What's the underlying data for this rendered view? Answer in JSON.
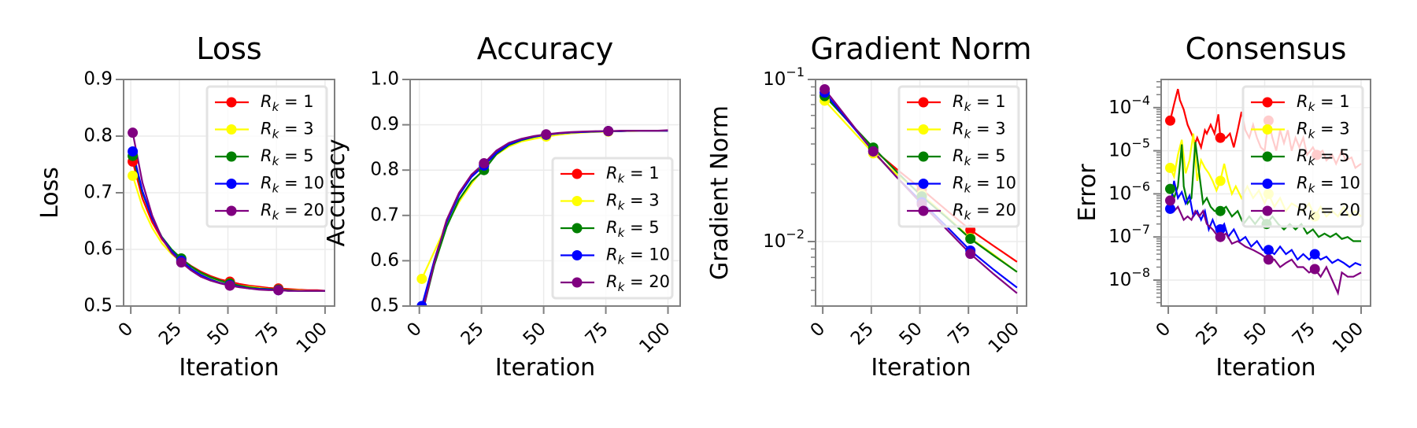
{
  "series_names": [
    "R_k = 1",
    "R_k = 3",
    "R_k = 5",
    "R_k = 10",
    "R_k = 20"
  ],
  "legend_values": [
    "1",
    "3",
    "5",
    "10",
    "20"
  ],
  "colors": [
    "#ff0000",
    "#ffff00",
    "#008000",
    "#0000ff",
    "#800080"
  ],
  "chart_data": [
    {
      "type": "line",
      "title": "Loss",
      "xlabel": "Iteration",
      "ylabel": "Loss",
      "xlim": [
        -3.7,
        104.9
      ],
      "ylim": [
        0.5,
        0.9
      ],
      "yscale": "linear",
      "xticks": [
        "0",
        "25",
        "50",
        "75",
        "100"
      ],
      "yticks": [
        "0.5",
        "0.6",
        "0.7",
        "0.8",
        "0.9"
      ],
      "grid": true,
      "legend": "top-right",
      "series": [
        {
          "x": [
            1,
            6,
            11,
            16,
            21,
            26,
            31,
            36,
            41,
            46,
            51,
            56,
            61,
            66,
            71,
            76,
            81,
            86,
            91,
            96,
            100
          ],
          "y": [
            0.755,
            0.69,
            0.648,
            0.618,
            0.597,
            0.583,
            0.571,
            0.561,
            0.553,
            0.547,
            0.543,
            0.539,
            0.536,
            0.534,
            0.532,
            0.531,
            0.53,
            0.529,
            0.528,
            0.528,
            0.527
          ]
        },
        {
          "x": [
            1,
            6,
            11,
            16,
            21,
            26,
            31,
            36,
            41,
            46,
            51,
            56,
            61,
            66,
            71,
            76,
            81,
            86,
            91,
            96,
            100
          ],
          "y": [
            0.73,
            0.675,
            0.638,
            0.611,
            0.592,
            0.578,
            0.566,
            0.557,
            0.549,
            0.544,
            0.54,
            0.536,
            0.534,
            0.532,
            0.53,
            0.529,
            0.528,
            0.528,
            0.527,
            0.527,
            0.527
          ]
        },
        {
          "x": [
            1,
            6,
            11,
            16,
            21,
            26,
            31,
            36,
            41,
            46,
            51,
            56,
            61,
            66,
            71,
            76,
            81,
            86,
            91,
            96,
            100
          ],
          "y": [
            0.765,
            0.7,
            0.655,
            0.622,
            0.6,
            0.584,
            0.57,
            0.559,
            0.551,
            0.545,
            0.54,
            0.536,
            0.533,
            0.531,
            0.53,
            0.529,
            0.528,
            0.527,
            0.527,
            0.527,
            0.527
          ]
        },
        {
          "x": [
            1,
            6,
            11,
            16,
            21,
            26,
            31,
            36,
            41,
            46,
            51,
            56,
            61,
            66,
            71,
            76,
            81,
            86,
            91,
            96,
            100
          ],
          "y": [
            0.773,
            0.703,
            0.655,
            0.621,
            0.597,
            0.58,
            0.566,
            0.555,
            0.547,
            0.541,
            0.537,
            0.534,
            0.531,
            0.53,
            0.529,
            0.528,
            0.527,
            0.527,
            0.527,
            0.527,
            0.527
          ]
        },
        {
          "x": [
            1,
            6,
            11,
            16,
            21,
            26,
            31,
            36,
            41,
            46,
            51,
            56,
            61,
            66,
            71,
            76,
            81,
            86,
            91,
            96,
            100
          ],
          "y": [
            0.806,
            0.718,
            0.66,
            0.62,
            0.594,
            0.577,
            0.563,
            0.552,
            0.545,
            0.54,
            0.536,
            0.533,
            0.531,
            0.529,
            0.528,
            0.528,
            0.527,
            0.527,
            0.527,
            0.527,
            0.527
          ]
        }
      ]
    },
    {
      "type": "line",
      "title": "Accuracy",
      "xlabel": "Iteration",
      "ylabel": "Accuracy",
      "xlim": [
        -3.7,
        104.9
      ],
      "ylim": [
        0.5,
        1.0
      ],
      "yscale": "linear",
      "xticks": [
        "0",
        "25",
        "50",
        "75",
        "100"
      ],
      "yticks": [
        "0.5",
        "0.6",
        "0.7",
        "0.8",
        "0.9",
        "1.0"
      ],
      "grid": true,
      "legend": "bottom-right",
      "series": [
        {
          "x": [
            1,
            6,
            11,
            16,
            21,
            26,
            31,
            36,
            41,
            46,
            51,
            56,
            61,
            66,
            71,
            76,
            81,
            86,
            91,
            96,
            100
          ],
          "y": [
            0.49,
            0.6,
            0.69,
            0.75,
            0.79,
            0.812,
            0.84,
            0.858,
            0.868,
            0.874,
            0.878,
            0.881,
            0.883,
            0.884,
            0.885,
            0.886,
            0.886,
            0.887,
            0.887,
            0.887,
            0.887
          ]
        },
        {
          "x": [
            1,
            6,
            11,
            16,
            21,
            26,
            31,
            36,
            41,
            46,
            51,
            56,
            61,
            66,
            71,
            76,
            81,
            86,
            91,
            96,
            100
          ],
          "y": [
            0.56,
            0.62,
            0.68,
            0.73,
            0.77,
            0.805,
            0.834,
            0.852,
            0.863,
            0.869,
            0.874,
            0.878,
            0.881,
            0.883,
            0.884,
            0.885,
            0.886,
            0.886,
            0.887,
            0.887,
            0.887
          ]
        },
        {
          "x": [
            1,
            6,
            11,
            16,
            21,
            26,
            31,
            36,
            41,
            46,
            51,
            56,
            61,
            66,
            71,
            76,
            81,
            86,
            91,
            96,
            100
          ],
          "y": [
            0.48,
            0.59,
            0.675,
            0.735,
            0.775,
            0.8,
            0.835,
            0.855,
            0.866,
            0.873,
            0.878,
            0.881,
            0.883,
            0.884,
            0.885,
            0.886,
            0.886,
            0.887,
            0.887,
            0.887,
            0.887
          ]
        },
        {
          "x": [
            1,
            6,
            11,
            16,
            21,
            26,
            31,
            36,
            41,
            46,
            51,
            56,
            61,
            66,
            71,
            76,
            81,
            86,
            91,
            96,
            100
          ],
          "y": [
            0.5,
            0.6,
            0.685,
            0.745,
            0.785,
            0.81,
            0.838,
            0.857,
            0.867,
            0.874,
            0.878,
            0.881,
            0.883,
            0.884,
            0.885,
            0.886,
            0.886,
            0.887,
            0.887,
            0.887,
            0.887
          ]
        },
        {
          "x": [
            1,
            6,
            11,
            16,
            21,
            26,
            31,
            36,
            41,
            46,
            51,
            56,
            61,
            66,
            71,
            76,
            81,
            86,
            91,
            96,
            100
          ],
          "y": [
            0.48,
            0.595,
            0.69,
            0.75,
            0.79,
            0.815,
            0.843,
            0.86,
            0.869,
            0.875,
            0.879,
            0.882,
            0.884,
            0.885,
            0.886,
            0.886,
            0.887,
            0.887,
            0.887,
            0.887,
            0.888
          ]
        }
      ]
    },
    {
      "type": "line",
      "title": "Gradient Norm",
      "xlabel": "Iteration",
      "ylabel": "Gradient Norm",
      "xlim": [
        -3.7,
        104.9
      ],
      "ylim": [
        0.004,
        0.1
      ],
      "yscale": "log",
      "xticks": [
        "0",
        "25",
        "50",
        "75",
        "100"
      ],
      "yticks": [
        "10^-2",
        "10^-1"
      ],
      "grid": true,
      "legend": "top-right",
      "series": [
        {
          "x": [
            1,
            26,
            38,
            51,
            64,
            76,
            88,
            100
          ],
          "y": [
            0.08,
            0.037,
            0.028,
            0.021,
            0.0155,
            0.0118,
            0.0094,
            0.0075
          ]
        },
        {
          "x": [
            1,
            26,
            38,
            51,
            64,
            76,
            88,
            100
          ],
          "y": [
            0.074,
            0.035,
            0.026,
            0.0195,
            0.0142,
            0.0105,
            0.0083,
            0.0065
          ]
        },
        {
          "x": [
            1,
            26,
            38,
            51,
            64,
            76,
            88,
            100
          ],
          "y": [
            0.079,
            0.038,
            0.027,
            0.019,
            0.014,
            0.0104,
            0.0082,
            0.0065
          ]
        },
        {
          "x": [
            1,
            26,
            38,
            51,
            64,
            76,
            88,
            100
          ],
          "y": [
            0.083,
            0.036,
            0.025,
            0.0175,
            0.0123,
            0.0088,
            0.0067,
            0.0052
          ]
        },
        {
          "x": [
            1,
            26,
            38,
            51,
            64,
            76,
            88,
            100
          ],
          "y": [
            0.087,
            0.036,
            0.025,
            0.017,
            0.0118,
            0.0084,
            0.0063,
            0.0048
          ]
        }
      ]
    },
    {
      "type": "line",
      "title": "Consensus",
      "xlabel": "Iteration",
      "ylabel": "Error",
      "xlim": [
        -3.7,
        104.9
      ],
      "ylim": [
        2.5e-09,
        0.00045
      ],
      "yscale": "log",
      "xticks": [
        "0",
        "25",
        "50",
        "75",
        "100"
      ],
      "yticks": [
        "10^-8",
        "10^-7",
        "10^-6",
        "10^-5",
        "10^-4"
      ],
      "grid": true,
      "legend": "top-right",
      "series": [
        {
          "x": [
            1,
            3,
            5,
            6,
            8,
            10,
            12,
            14,
            15,
            17,
            19,
            20,
            22,
            24,
            26,
            27,
            30,
            32,
            34,
            36,
            38,
            40,
            42,
            44,
            46,
            48,
            50,
            52,
            54,
            56,
            58,
            60,
            62,
            64,
            66,
            68,
            70,
            72,
            75,
            77,
            80,
            82,
            85,
            87,
            90,
            92,
            95,
            97,
            100
          ],
          "y": [
            5e-05,
            0.00012,
            0.00027,
            0.00015,
            9e-05,
            4e-05,
            2.5e-05,
            1.5e-05,
            2e-05,
            1.2e-05,
            3e-05,
            2.5e-05,
            4e-05,
            2.5e-05,
            7e-05,
            2e-05,
            2e-05,
            2.5e-05,
            1.2e-05,
            3e-05,
            8e-05,
            3e-05,
            2e-05,
            4e-05,
            2e-05,
            1.2e-05,
            1e-05,
            5e-05,
            2e-05,
            1e-05,
            3e-05,
            1.5e-05,
            3e-05,
            1e-05,
            2e-05,
            1.2e-05,
            2e-05,
            8e-06,
            1.2e-05,
            8e-06,
            1e-05,
            6e-06,
            8e-06,
            5e-06,
            1e-05,
            6e-06,
            7e-06,
            4e-06,
            5e-06
          ]
        },
        {
          "x": [
            1,
            3,
            5,
            7,
            9,
            11,
            13,
            15,
            17,
            19,
            21,
            23,
            25,
            27,
            29,
            31,
            33,
            35,
            38,
            41,
            44,
            47,
            50,
            52,
            55,
            58,
            61,
            64,
            67,
            70,
            73,
            76,
            79,
            82,
            85,
            88,
            91,
            94,
            97,
            100
          ],
          "y": [
            4e-06,
            2.5e-06,
            8e-06,
            1.8e-05,
            3e-06,
            6e-06,
            2.5e-05,
            2e-06,
            6e-06,
            4e-06,
            3e-06,
            2e-06,
            1.2e-06,
            2e-06,
            5e-06,
            2e-06,
            1e-06,
            1.5e-06,
            8e-07,
            1.5e-06,
            8e-07,
            1.2e-06,
            6e-07,
            1e-06,
            5e-07,
            8e-07,
            4e-07,
            6e-07,
            5e-07,
            4e-07,
            6e-07,
            3e-07,
            5e-07,
            3e-07,
            4e-07,
            3e-07,
            5e-07,
            3e-07,
            4e-07,
            3e-07
          ]
        },
        {
          "x": [
            1,
            3,
            5,
            7,
            8,
            10,
            12,
            14,
            16,
            18,
            20,
            22,
            24,
            27,
            30,
            33,
            36,
            39,
            42,
            45,
            48,
            51,
            54,
            57,
            60,
            63,
            66,
            69,
            72,
            75,
            78,
            81,
            84,
            87,
            90,
            93,
            96,
            100
          ],
          "y": [
            1.3e-06,
            8e-07,
            1.5e-06,
            1.4e-05,
            1.5e-06,
            6e-07,
            8e-07,
            1.6e-05,
            3e-06,
            6e-07,
            8e-07,
            5e-07,
            4e-07,
            4e-07,
            5e-07,
            3e-07,
            4e-07,
            2e-07,
            3e-07,
            2e-07,
            3e-07,
            2e-07,
            3e-07,
            2e-07,
            1.5e-07,
            2e-07,
            1.5e-07,
            2e-07,
            1.2e-07,
            1.5e-07,
            1e-07,
            1.2e-07,
            1e-07,
            1.2e-07,
            9e-08,
            1e-07,
            8e-08,
            8e-08
          ]
        },
        {
          "x": [
            1,
            3,
            5,
            7,
            9,
            11,
            13,
            15,
            17,
            19,
            21,
            23,
            25,
            27,
            29,
            31,
            34,
            37,
            40,
            43,
            46,
            49,
            52,
            55,
            58,
            61,
            64,
            67,
            70,
            73,
            76,
            79,
            82,
            85,
            88,
            91,
            94,
            97,
            100
          ],
          "y": [
            4.5e-07,
            2e-06,
            8e-07,
            1.1e-06,
            6e-07,
            9e-07,
            3e-07,
            4e-07,
            2.5e-07,
            4e-07,
            1.5e-07,
            2.5e-07,
            1.5e-07,
            1.5e-07,
            2e-07,
            1e-07,
            1.5e-07,
            8e-08,
            1e-07,
            6e-08,
            8e-08,
            5e-08,
            5e-08,
            4e-08,
            6e-08,
            4e-08,
            5e-08,
            3e-08,
            4e-08,
            3e-08,
            4e-08,
            3e-08,
            3.5e-08,
            2.5e-08,
            3e-08,
            2.5e-08,
            2e-08,
            2.5e-08,
            2.2e-08
          ]
        },
        {
          "x": [
            1,
            3,
            5,
            8,
            10,
            12,
            14,
            16,
            18,
            20,
            23,
            26,
            27,
            30,
            33,
            36,
            40,
            44,
            48,
            52,
            55,
            58,
            61,
            64,
            67,
            70,
            73,
            76,
            79,
            82,
            85,
            88,
            90,
            93,
            96,
            100
          ],
          "y": [
            7e-07,
            4e-07,
            5e-07,
            2.5e-07,
            3e-07,
            2.5e-07,
            4e-07,
            3e-07,
            4e-07,
            2e-07,
            1.5e-07,
            1e-07,
            1e-07,
            1.2e-07,
            7e-08,
            8e-08,
            6e-08,
            5e-08,
            4e-08,
            3e-08,
            3e-08,
            2e-08,
            2.5e-08,
            3e-08,
            2e-08,
            2e-08,
            1.5e-08,
            1.8e-08,
            1.2e-08,
            2e-08,
            1e-08,
            5e-09,
            1.5e-08,
            1.2e-08,
            1.2e-08,
            1.5e-08
          ]
        }
      ]
    }
  ]
}
